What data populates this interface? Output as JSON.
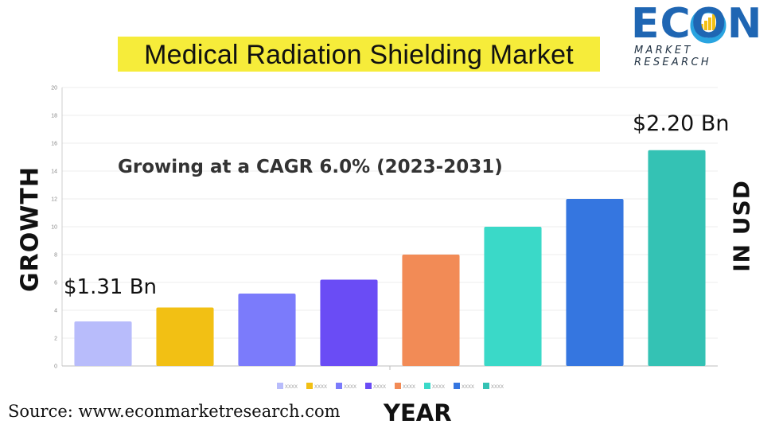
{
  "header": {
    "title": "Medical Radiation Shielding Market",
    "logo_text": "ECON",
    "logo_subtitle": "MARKET RESEARCH"
  },
  "labels": {
    "left_axis": "GROWTH",
    "right_axis": "IN USD",
    "x_axis": "YEAR",
    "source": "Source: www.econmarketresearch.com"
  },
  "annotations": {
    "cagr": "Growing at a CAGR 6.0% (2023-2031)",
    "start_value": "$1.31 Bn",
    "end_value": "$2.20 Bn"
  },
  "colors": {
    "title_highlight": "#f6ec3a",
    "logo_blue": "#1f66b3"
  },
  "chart_data": {
    "type": "bar",
    "categories": [
      "XXXX",
      "XXXX",
      "XXXX",
      "XXXX",
      "XXXX",
      "XXXX",
      "XXXX",
      "XXXX"
    ],
    "values": [
      3.2,
      4.2,
      5.2,
      6.2,
      8.0,
      10.0,
      12.0,
      15.5
    ],
    "colors": [
      "#b8bcfb",
      "#f2c014",
      "#7b7bfb",
      "#6a4cf5",
      "#f28b56",
      "#3ad9c8",
      "#3576e0",
      "#34c2b4"
    ],
    "ylim": [
      0,
      20
    ],
    "yticks": [
      0,
      2,
      4,
      6,
      8,
      10,
      12,
      14,
      16,
      18,
      20
    ],
    "grid": true,
    "legend_position": "bottom"
  }
}
